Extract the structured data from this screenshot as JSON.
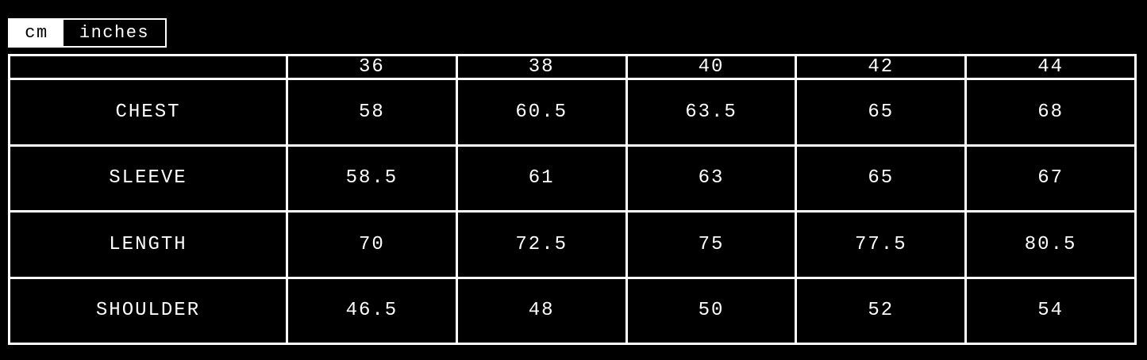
{
  "unit_toggle": {
    "options": [
      "cm",
      "inches"
    ],
    "selected": "cm"
  },
  "colors": {
    "background": "#000000",
    "foreground": "#ffffff"
  },
  "size_table": {
    "header": [
      "",
      "36",
      "38",
      "40",
      "42",
      "44"
    ],
    "rows": [
      {
        "label": "CHEST",
        "values": [
          "58",
          "60.5",
          "63.5",
          "65",
          "68"
        ]
      },
      {
        "label": "SLEEVE",
        "values": [
          "58.5",
          "61",
          "63",
          "65",
          "67"
        ]
      },
      {
        "label": "LENGTH",
        "values": [
          "70",
          "72.5",
          "75",
          "77.5",
          "80.5"
        ]
      },
      {
        "label": "SHOULDER",
        "values": [
          "46.5",
          "48",
          "50",
          "52",
          "54"
        ]
      }
    ]
  }
}
